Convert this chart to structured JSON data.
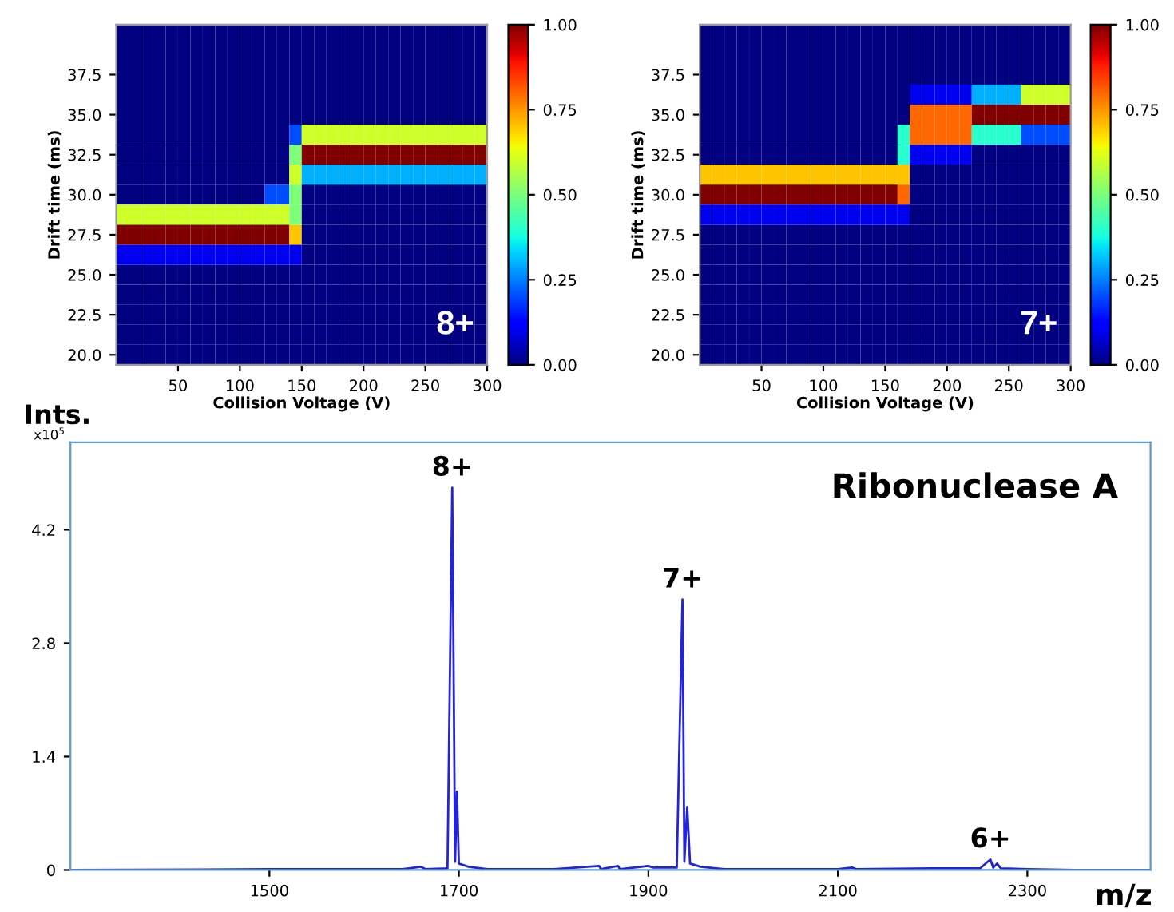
{
  "chart_data": [
    {
      "type": "heatmap",
      "xlabel": "Collision Voltage (V)",
      "ylabel": "Drift time (ms)",
      "annotations": [
        "8+"
      ],
      "x": [
        5,
        15,
        25,
        35,
        45,
        55,
        65,
        75,
        85,
        95,
        105,
        115,
        125,
        135,
        145,
        155,
        165,
        175,
        185,
        195,
        205,
        215,
        225,
        235,
        245,
        255,
        265,
        275,
        285,
        295
      ],
      "y_categories": [
        null,
        null,
        "37.5",
        null,
        "35.0",
        null,
        "32.5",
        null,
        "30.0",
        null,
        "27.5",
        null,
        "25.0",
        null,
        "22.5",
        null,
        "20.0"
      ],
      "cells": [
        [
          0,
          0,
          0,
          0,
          0,
          0,
          0,
          0,
          0,
          0,
          0,
          0,
          0,
          0,
          0,
          0,
          0,
          0,
          0,
          0,
          0,
          0,
          0,
          0,
          0,
          0,
          0,
          0,
          0,
          0
        ],
        [
          0,
          0,
          0,
          0,
          0,
          0,
          0,
          0,
          0,
          0,
          0,
          0,
          0,
          0,
          0,
          0,
          0,
          0,
          0,
          0,
          0,
          0,
          0,
          0,
          0,
          0,
          0,
          0,
          0,
          0
        ],
        [
          0,
          0,
          0,
          0,
          0,
          0,
          0,
          0,
          0,
          0,
          0,
          0,
          0,
          0,
          0,
          0,
          0,
          0,
          0,
          0,
          0,
          0,
          0,
          0,
          0,
          0,
          0,
          0,
          0,
          0
        ],
        [
          0,
          0,
          0,
          0,
          0,
          0,
          0,
          0,
          0,
          0,
          0,
          0,
          0,
          0,
          0,
          0,
          0,
          0,
          0,
          0,
          0,
          0,
          0,
          0,
          0,
          0,
          0,
          0,
          0,
          0
        ],
        [
          0,
          0,
          0,
          0,
          0,
          0,
          0,
          0,
          0,
          0,
          0,
          0,
          0,
          0,
          0,
          0,
          0,
          0,
          0,
          0,
          0,
          0,
          0,
          0,
          0,
          0,
          0,
          0,
          0,
          0
        ],
        [
          0,
          0,
          0,
          0,
          0,
          0,
          0,
          0,
          0,
          0,
          0,
          0,
          0,
          0,
          0.2,
          0.6,
          0.6,
          0.6,
          0.6,
          0.6,
          0.6,
          0.6,
          0.6,
          0.6,
          0.6,
          0.6,
          0.6,
          0.6,
          0.6,
          0.6
        ],
        [
          0,
          0,
          0,
          0,
          0,
          0,
          0,
          0,
          0,
          0,
          0,
          0,
          0,
          0,
          0.5,
          1,
          1,
          1,
          1,
          1,
          1,
          1,
          1,
          1,
          1,
          1,
          1,
          1,
          1,
          1
        ],
        [
          0,
          0,
          0,
          0,
          0,
          0,
          0,
          0,
          0,
          0,
          0,
          0,
          0,
          0,
          0.6,
          0.3,
          0.3,
          0.3,
          0.3,
          0.3,
          0.3,
          0.3,
          0.3,
          0.3,
          0.3,
          0.3,
          0.3,
          0.3,
          0.3,
          0.3
        ],
        [
          0,
          0,
          0,
          0,
          0,
          0,
          0,
          0,
          0,
          0,
          0,
          0,
          0.2,
          0.2,
          0.5,
          0,
          0,
          0,
          0,
          0,
          0,
          0,
          0,
          0,
          0,
          0,
          0,
          0,
          0,
          0
        ],
        [
          0.6,
          0.6,
          0.6,
          0.6,
          0.6,
          0.6,
          0.6,
          0.6,
          0.6,
          0.6,
          0.6,
          0.6,
          0.6,
          0.6,
          0.5,
          0,
          0,
          0,
          0,
          0,
          0,
          0,
          0,
          0,
          0,
          0,
          0,
          0,
          0,
          0
        ],
        [
          1,
          1,
          1,
          1,
          1,
          1,
          1,
          1,
          1,
          1,
          1,
          1,
          1,
          1,
          0.7,
          0,
          0,
          0,
          0,
          0,
          0,
          0,
          0,
          0,
          0,
          0,
          0,
          0,
          0,
          0
        ],
        [
          0.1,
          0.1,
          0.1,
          0.1,
          0.1,
          0.1,
          0.1,
          0.1,
          0.1,
          0.1,
          0.1,
          0.1,
          0.1,
          0.1,
          0.1,
          0,
          0,
          0,
          0,
          0,
          0,
          0,
          0,
          0,
          0,
          0,
          0,
          0,
          0,
          0
        ],
        [
          0,
          0,
          0,
          0,
          0,
          0,
          0,
          0,
          0,
          0,
          0,
          0,
          0,
          0,
          0,
          0,
          0,
          0,
          0,
          0,
          0,
          0,
          0,
          0,
          0,
          0,
          0,
          0,
          0,
          0
        ],
        [
          0,
          0,
          0,
          0,
          0,
          0,
          0,
          0,
          0,
          0,
          0,
          0,
          0,
          0,
          0,
          0,
          0,
          0,
          0,
          0,
          0,
          0,
          0,
          0,
          0,
          0,
          0,
          0,
          0,
          0
        ],
        [
          0,
          0,
          0,
          0,
          0,
          0,
          0,
          0,
          0,
          0,
          0,
          0,
          0,
          0,
          0,
          0,
          0,
          0,
          0,
          0,
          0,
          0,
          0,
          0,
          0,
          0,
          0,
          0,
          0,
          0
        ],
        [
          0,
          0,
          0,
          0,
          0,
          0,
          0,
          0,
          0,
          0,
          0,
          0,
          0,
          0,
          0,
          0,
          0,
          0,
          0,
          0,
          0,
          0,
          0,
          0,
          0,
          0,
          0,
          0,
          0,
          0
        ],
        [
          0,
          0,
          0,
          0,
          0,
          0,
          0,
          0,
          0,
          0,
          0,
          0,
          0,
          0,
          0,
          0,
          0,
          0,
          0,
          0,
          0,
          0,
          0,
          0,
          0,
          0,
          0,
          0,
          0,
          0
        ]
      ],
      "xlim": [
        0,
        300
      ],
      "xticks": [
        50,
        100,
        150,
        200,
        250,
        300
      ],
      "clim": [
        0,
        1
      ],
      "cticks": [
        {
          "value": 0,
          "label": "0.00"
        },
        {
          "value": 0.25,
          "label": "0.25"
        },
        {
          "value": 0.5,
          "label": "0.50"
        },
        {
          "value": 0.75,
          "label": "0.75"
        },
        {
          "value": 1,
          "label": "1.00"
        }
      ]
    },
    {
      "type": "heatmap",
      "xlabel": "Collision Voltage (V)",
      "ylabel": "Drift time (ms)",
      "annotations": [
        "7+"
      ],
      "x": [
        5,
        15,
        25,
        35,
        45,
        55,
        65,
        75,
        85,
        95,
        105,
        115,
        125,
        135,
        145,
        155,
        165,
        175,
        185,
        195,
        205,
        215,
        225,
        235,
        245,
        255,
        265,
        275,
        285,
        295
      ],
      "y_categories": [
        null,
        null,
        "37.5",
        null,
        "35.0",
        null,
        "32.5",
        null,
        "30.0",
        null,
        "27.5",
        null,
        "25.0",
        null,
        "22.5",
        null,
        "20.0"
      ],
      "cells": [
        [
          0,
          0,
          0,
          0,
          0,
          0,
          0,
          0,
          0,
          0,
          0,
          0,
          0,
          0,
          0,
          0,
          0,
          0,
          0,
          0,
          0,
          0,
          0,
          0,
          0,
          0,
          0,
          0,
          0,
          0
        ],
        [
          0,
          0,
          0,
          0,
          0,
          0,
          0,
          0,
          0,
          0,
          0,
          0,
          0,
          0,
          0,
          0,
          0,
          0,
          0,
          0,
          0,
          0,
          0,
          0,
          0,
          0,
          0,
          0,
          0,
          0
        ],
        [
          0,
          0,
          0,
          0,
          0,
          0,
          0,
          0,
          0,
          0,
          0,
          0,
          0,
          0,
          0,
          0,
          0,
          0,
          0,
          0,
          0,
          0,
          0,
          0,
          0,
          0,
          0,
          0,
          0,
          0
        ],
        [
          0,
          0,
          0,
          0,
          0,
          0,
          0,
          0,
          0,
          0,
          0,
          0,
          0,
          0,
          0,
          0,
          0,
          0.1,
          0.1,
          0.1,
          0.1,
          0.1,
          0.3,
          0.3,
          0.3,
          0.3,
          0.6,
          0.6,
          0.6,
          0.6
        ],
        [
          0,
          0,
          0,
          0,
          0,
          0,
          0,
          0,
          0,
          0,
          0,
          0,
          0,
          0,
          0,
          0,
          0,
          0.8,
          0.8,
          0.8,
          0.8,
          0.8,
          1,
          1,
          1,
          1,
          1,
          1,
          1,
          1
        ],
        [
          0,
          0,
          0,
          0,
          0,
          0,
          0,
          0,
          0,
          0,
          0,
          0,
          0,
          0,
          0,
          0,
          0.4,
          0.8,
          0.8,
          0.8,
          0.8,
          0.8,
          0.4,
          0.4,
          0.4,
          0.4,
          0.2,
          0.2,
          0.2,
          0.2
        ],
        [
          0,
          0,
          0,
          0,
          0,
          0,
          0,
          0,
          0,
          0,
          0,
          0,
          0,
          0,
          0,
          0,
          0.4,
          0.1,
          0.1,
          0.1,
          0.1,
          0.1,
          0,
          0,
          0,
          0,
          0,
          0,
          0,
          0
        ],
        [
          0.7,
          0.7,
          0.7,
          0.7,
          0.7,
          0.7,
          0.7,
          0.7,
          0.7,
          0.7,
          0.7,
          0.7,
          0.7,
          0.7,
          0.7,
          0.7,
          0.7,
          0,
          0,
          0,
          0,
          0,
          0,
          0,
          0,
          0,
          0,
          0,
          0,
          0
        ],
        [
          1,
          1,
          1,
          1,
          1,
          1,
          1,
          1,
          1,
          1,
          1,
          1,
          1,
          1,
          1,
          1,
          0.8,
          0,
          0,
          0,
          0,
          0,
          0,
          0,
          0,
          0,
          0,
          0,
          0,
          0
        ],
        [
          0.1,
          0.1,
          0.1,
          0.1,
          0.1,
          0.1,
          0.1,
          0.1,
          0.1,
          0.1,
          0.1,
          0.1,
          0.1,
          0.1,
          0.1,
          0.1,
          0.1,
          0,
          0,
          0,
          0,
          0,
          0,
          0,
          0,
          0,
          0,
          0,
          0,
          0
        ],
        [
          0,
          0,
          0,
          0,
          0,
          0,
          0,
          0,
          0,
          0,
          0,
          0,
          0,
          0,
          0,
          0,
          0,
          0,
          0,
          0,
          0,
          0,
          0,
          0,
          0,
          0,
          0,
          0,
          0,
          0
        ],
        [
          0,
          0,
          0,
          0,
          0,
          0,
          0,
          0,
          0,
          0,
          0,
          0,
          0,
          0,
          0,
          0,
          0,
          0,
          0,
          0,
          0,
          0,
          0,
          0,
          0,
          0,
          0,
          0,
          0,
          0
        ],
        [
          0,
          0,
          0,
          0,
          0,
          0,
          0,
          0,
          0,
          0,
          0,
          0,
          0,
          0,
          0,
          0,
          0,
          0,
          0,
          0,
          0,
          0,
          0,
          0,
          0,
          0,
          0,
          0,
          0,
          0
        ],
        [
          0,
          0,
          0,
          0,
          0,
          0,
          0,
          0,
          0,
          0,
          0,
          0,
          0,
          0,
          0,
          0,
          0,
          0,
          0,
          0,
          0,
          0,
          0,
          0,
          0,
          0,
          0,
          0,
          0,
          0
        ],
        [
          0,
          0,
          0,
          0,
          0,
          0,
          0,
          0,
          0,
          0,
          0,
          0,
          0,
          0,
          0,
          0,
          0,
          0,
          0,
          0,
          0,
          0,
          0,
          0,
          0,
          0,
          0,
          0,
          0,
          0
        ],
        [
          0,
          0,
          0,
          0,
          0,
          0,
          0,
          0,
          0,
          0,
          0,
          0,
          0,
          0,
          0,
          0,
          0,
          0,
          0,
          0,
          0,
          0,
          0,
          0,
          0,
          0,
          0,
          0,
          0,
          0
        ],
        [
          0,
          0,
          0,
          0,
          0,
          0,
          0,
          0,
          0,
          0,
          0,
          0,
          0,
          0,
          0,
          0,
          0,
          0,
          0,
          0,
          0,
          0,
          0,
          0,
          0,
          0,
          0,
          0,
          0,
          0
        ]
      ],
      "xlim": [
        0,
        300
      ],
      "xticks": [
        50,
        100,
        150,
        200,
        250,
        300
      ],
      "clim": [
        0,
        1
      ],
      "cticks": [
        {
          "value": 0,
          "label": "0.00"
        },
        {
          "value": 0.25,
          "label": "0.25"
        },
        {
          "value": 0.5,
          "label": "0.50"
        },
        {
          "value": 0.75,
          "label": "0.75"
        },
        {
          "value": 1,
          "label": "1.00"
        }
      ]
    },
    {
      "type": "line",
      "xlabel": "m/z",
      "ylabel": "Ints.",
      "annotations": [
        "x10$^{5}$",
        "Ribonuclease A",
        {
          "text": "8+",
          "x": 1693,
          "y": 4.72
        },
        {
          "text": "7+",
          "x": 1936,
          "y": 3.34
        },
        {
          "text": "6+",
          "x": 2261,
          "y": 0.13
        }
      ],
      "series": [
        {
          "color": "#2323d8",
          "x": [
            1290,
            1500,
            1640,
            1660,
            1665,
            1688,
            1693,
            1696,
            1698,
            1700,
            1710,
            1730,
            1800,
            1848,
            1850,
            1868,
            1870,
            1900,
            1905,
            1930,
            1936,
            1938,
            1941,
            1944,
            1955,
            1980,
            2100,
            2115,
            2120,
            2200,
            2250,
            2261,
            2264,
            2268,
            2272,
            2300,
            2350,
            2430
          ],
          "values": [
            0,
            0.01,
            0.01,
            0.04,
            0.01,
            0.02,
            4.72,
            0.1,
            0.97,
            0.08,
            0.04,
            0.01,
            0.01,
            0.05,
            0.01,
            0.05,
            0.01,
            0.05,
            0.03,
            0.03,
            3.34,
            0.1,
            0.78,
            0.08,
            0.04,
            0.01,
            0.01,
            0.03,
            0.01,
            0.02,
            0.02,
            0.13,
            0.03,
            0.08,
            0.02,
            0.01,
            0,
            0
          ]
        }
      ],
      "xlim": [
        1290,
        2430
      ],
      "ylim": [
        0,
        5.28
      ],
      "xticks": [
        1500,
        1700,
        1900,
        2100,
        2300
      ],
      "yticks": [
        0,
        1.4,
        2.8,
        4.2
      ]
    }
  ]
}
